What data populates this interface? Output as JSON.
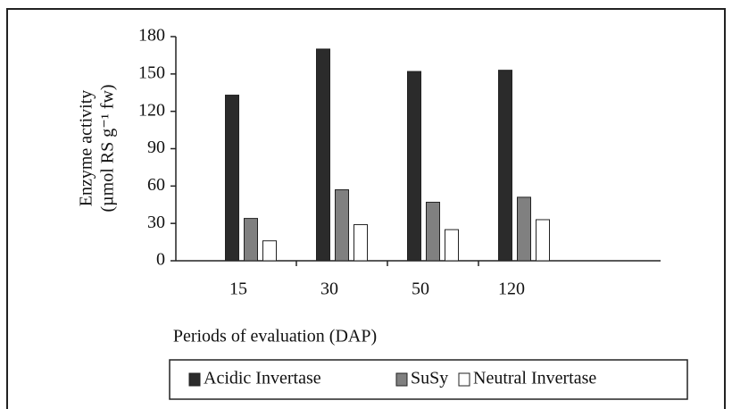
{
  "chart_data": {
    "type": "bar",
    "ylabel": [
      "Enzyme activity",
      "(µmol  RS g⁻¹ fw)"
    ],
    "xlabel": "Periods of evaluation (DAP)",
    "categories": [
      "15",
      "30",
      "50",
      "120"
    ],
    "series": [
      {
        "name": "Acidic Invertase",
        "color": "#2b2b2b",
        "values": [
          133,
          170,
          152,
          153
        ]
      },
      {
        "name": "SuSy",
        "color": "#808080",
        "values": [
          34,
          57,
          47,
          51
        ]
      },
      {
        "name": "Neutral Invertase",
        "color": "#ffffff",
        "values": [
          16,
          29,
          25,
          33
        ]
      }
    ],
    "ylim": [
      0,
      180
    ],
    "yticks": [
      0,
      30,
      60,
      90,
      120,
      150,
      180
    ],
    "legend": "bottom"
  }
}
